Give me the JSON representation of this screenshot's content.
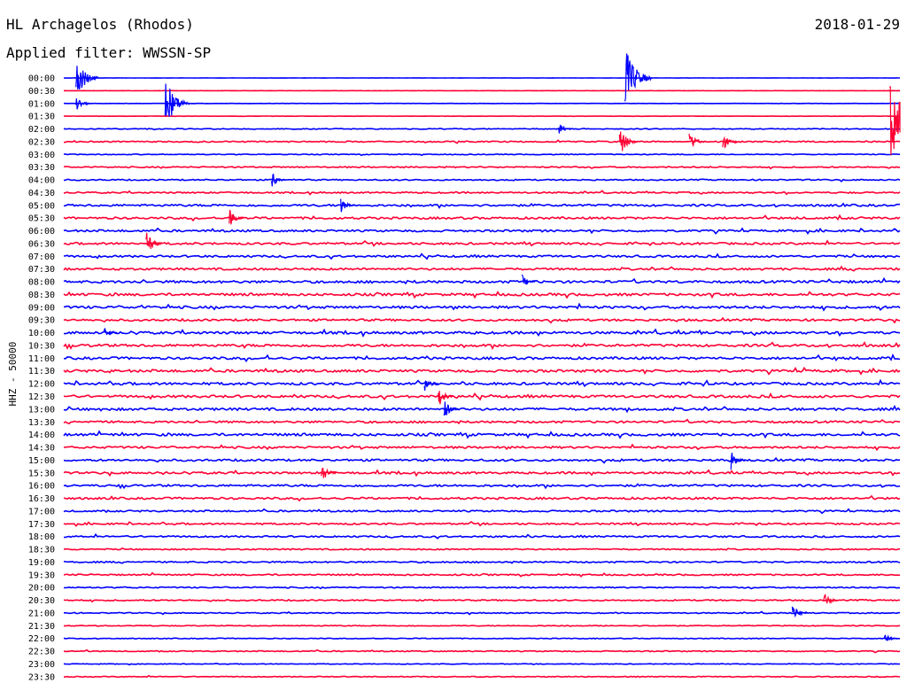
{
  "header": {
    "station": "HL Archagelos (Rhodos)",
    "date": "2018-01-29",
    "filter": "Applied filter: WWSSN-SP"
  },
  "chart_data": {
    "type": "line",
    "title": "HL Archagelos (Rhodos)",
    "subtitle": "Applied filter: WWSSN-SP",
    "date": "2018-01-29",
    "ylabel": "HHZ - 50000",
    "xlabel": "",
    "grid": false,
    "row_interval_minutes": 30,
    "colors": {
      "even_row": "#0000ff",
      "odd_row": "#ff0033",
      "text": "#000000"
    },
    "row_labels": [
      "00:00",
      "00:30",
      "01:00",
      "01:30",
      "02:00",
      "02:30",
      "03:00",
      "03:30",
      "04:00",
      "04:30",
      "05:00",
      "05:30",
      "06:00",
      "06:30",
      "07:00",
      "07:30",
      "08:00",
      "08:30",
      "09:00",
      "09:30",
      "10:00",
      "10:30",
      "11:00",
      "11:30",
      "12:00",
      "12:30",
      "13:00",
      "13:30",
      "14:00",
      "14:30",
      "15:00",
      "15:30",
      "16:00",
      "16:30",
      "17:00",
      "17:30",
      "18:00",
      "18:30",
      "19:00",
      "19:30",
      "20:00",
      "20:30",
      "21:00",
      "21:30",
      "22:00",
      "22:30",
      "23:00",
      "23:30"
    ],
    "row_activity": [
      0.05,
      0.05,
      0.06,
      0.06,
      0.2,
      0.3,
      0.2,
      0.3,
      0.3,
      0.35,
      0.5,
      0.5,
      0.5,
      0.5,
      0.5,
      0.5,
      0.6,
      0.6,
      0.6,
      0.5,
      0.6,
      0.6,
      0.6,
      0.6,
      0.6,
      0.6,
      0.6,
      0.5,
      0.6,
      0.5,
      0.5,
      0.5,
      0.5,
      0.5,
      0.4,
      0.4,
      0.4,
      0.3,
      0.35,
      0.35,
      0.3,
      0.3,
      0.25,
      0.2,
      0.2,
      0.25,
      0.15,
      0.2
    ],
    "events": [
      {
        "row": 0,
        "minute": 0.5,
        "amplitude": 3.0
      },
      {
        "row": 2,
        "minute": 0.5,
        "amplitude": 1.2
      },
      {
        "row": 2,
        "minute": 3.7,
        "amplitude": 3.5
      },
      {
        "row": 0,
        "minute": 20.2,
        "amplitude": 4.0
      },
      {
        "row": 4,
        "minute": 17.8,
        "amplitude": 1.0
      },
      {
        "row": 5,
        "minute": 20.0,
        "amplitude": 2.0
      },
      {
        "row": 5,
        "minute": 22.5,
        "amplitude": 1.5
      },
      {
        "row": 5,
        "minute": 23.7,
        "amplitude": 1.2
      },
      {
        "row": 3,
        "minute": 29.7,
        "amplitude": 6.0
      },
      {
        "row": 13,
        "minute": 3.0,
        "amplitude": 1.8
      },
      {
        "row": 11,
        "minute": 6.0,
        "amplitude": 1.2
      },
      {
        "row": 8,
        "minute": 7.5,
        "amplitude": 1.2
      },
      {
        "row": 10,
        "minute": 10.0,
        "amplitude": 1.0
      },
      {
        "row": 24,
        "minute": 13.0,
        "amplitude": 1.2
      },
      {
        "row": 25,
        "minute": 13.5,
        "amplitude": 1.5
      },
      {
        "row": 26,
        "minute": 13.7,
        "amplitude": 1.4
      },
      {
        "row": 31,
        "minute": 9.3,
        "amplitude": 1.5
      },
      {
        "row": 30,
        "minute": 24.0,
        "amplitude": 1.3
      },
      {
        "row": 42,
        "minute": 26.2,
        "amplitude": 1.2
      },
      {
        "row": 41,
        "minute": 27.3,
        "amplitude": 1.3
      },
      {
        "row": 44,
        "minute": 29.5,
        "amplitude": 0.9
      },
      {
        "row": 20,
        "minute": 1.5,
        "amplitude": 1.0
      },
      {
        "row": 16,
        "minute": 16.5,
        "amplitude": 1.0
      }
    ]
  }
}
